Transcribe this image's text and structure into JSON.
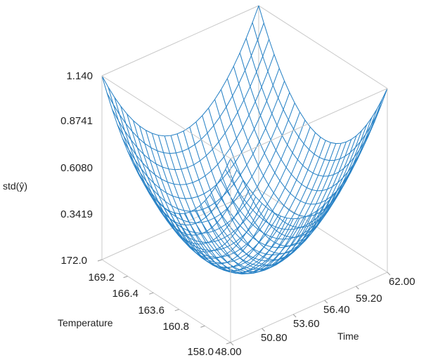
{
  "chart_data": {
    "type": "surface",
    "zlabel": "std(ŷ)",
    "xlabel": "Temperature",
    "ylabel": "Time",
    "z_ticks": [
      "1.140",
      "0.8741",
      "0.6080",
      "0.3419"
    ],
    "temperature_ticks": [
      "172.0",
      "169.2",
      "166.4",
      "163.6",
      "160.8",
      "158.0"
    ],
    "time_ticks": [
      "48.00",
      "50.80",
      "53.60",
      "56.40",
      "59.20",
      "62.00"
    ],
    "xlim": [
      158.0,
      172.0
    ],
    "ylim": [
      48.0,
      62.0
    ],
    "zlim": [
      0.0758,
      1.14
    ],
    "grid_size": 25,
    "surface": {
      "z_min": 0.0758,
      "z_max": 1.14,
      "shape": "paraboloid",
      "min_at": {
        "temperature": 165.0,
        "time": 55.0
      }
    },
    "colors": {
      "mesh": "#2a83c6",
      "box": "#c8c8c8"
    }
  }
}
